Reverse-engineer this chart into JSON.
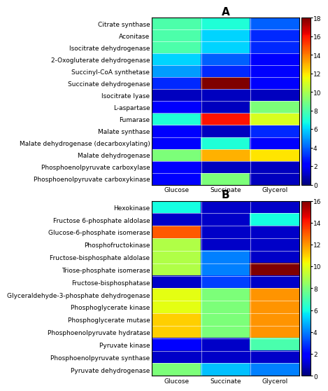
{
  "panel_A": {
    "title": "A",
    "rows": [
      "Citrate synthase",
      "Aconitase",
      "Isocitrate dehydrogenase",
      "2-Oxogluterate dehydrogenase",
      "Succinyl-CoA synthetase",
      "Succinate dehydrogenase",
      "Isocitrate lyase",
      "L-aspartase",
      "Fumarase",
      "Malate synthase",
      "Malate dehydrogenase (decarboxylating)",
      "Malate dehydrogenase",
      "Phosphoenolpyruvate carboxylase",
      "Phosphoenolpyruvate carboxykinase"
    ],
    "cols": [
      "Glucose",
      "Succinate",
      "Glycerol"
    ],
    "data": [
      [
        8,
        7,
        4
      ],
      [
        8,
        6,
        3
      ],
      [
        8,
        6,
        3
      ],
      [
        6,
        4,
        2
      ],
      [
        5,
        3,
        2
      ],
      [
        3,
        18,
        2
      ],
      [
        1,
        1,
        1
      ],
      [
        2,
        1,
        9
      ],
      [
        7,
        16,
        11
      ],
      [
        2,
        1,
        3
      ],
      [
        2,
        7,
        2
      ],
      [
        9,
        13,
        12
      ],
      [
        2,
        1,
        1
      ],
      [
        2,
        9,
        1
      ]
    ],
    "vmin": 0,
    "vmax": 18
  },
  "panel_B": {
    "title": "B",
    "rows": [
      "Hexokinase",
      "Fructose 6-phosphate aldolase",
      "Glucose-6-phosphate isomerase",
      "Phosphofructokinase",
      "Fructose-bisphosphate aldolase",
      "Triose-phosphate isomerase",
      "Fructose-bisphosphatase",
      "Glyceraldehyde-3-phosphate dehydrogenase",
      "Phosphoglycerate kinase",
      "Phosphoglycerate mutase",
      "Phosphoenolpyruvate hydratase",
      "Pyruvate kinase",
      "Phosphoenolpyruvate synthase",
      "Pyruvate dehydrogenase"
    ],
    "cols": [
      "Glucose",
      "Succinate",
      "Glycerol"
    ],
    "data": [
      [
        6,
        1,
        1
      ],
      [
        1,
        1,
        6
      ],
      [
        13,
        1,
        1
      ],
      [
        9,
        1,
        1
      ],
      [
        9,
        4,
        1
      ],
      [
        9,
        4,
        16
      ],
      [
        1,
        3,
        1
      ],
      [
        10,
        8,
        12
      ],
      [
        10,
        8,
        12
      ],
      [
        11,
        8,
        12
      ],
      [
        11,
        8,
        12
      ],
      [
        2,
        1,
        7
      ],
      [
        1,
        1,
        1
      ],
      [
        8,
        5,
        4
      ]
    ],
    "vmin": 0,
    "vmax": 16
  },
  "background": "#ffffff",
  "label_fontsize": 6.5,
  "title_fontsize": 11,
  "tick_fontsize": 6.5
}
